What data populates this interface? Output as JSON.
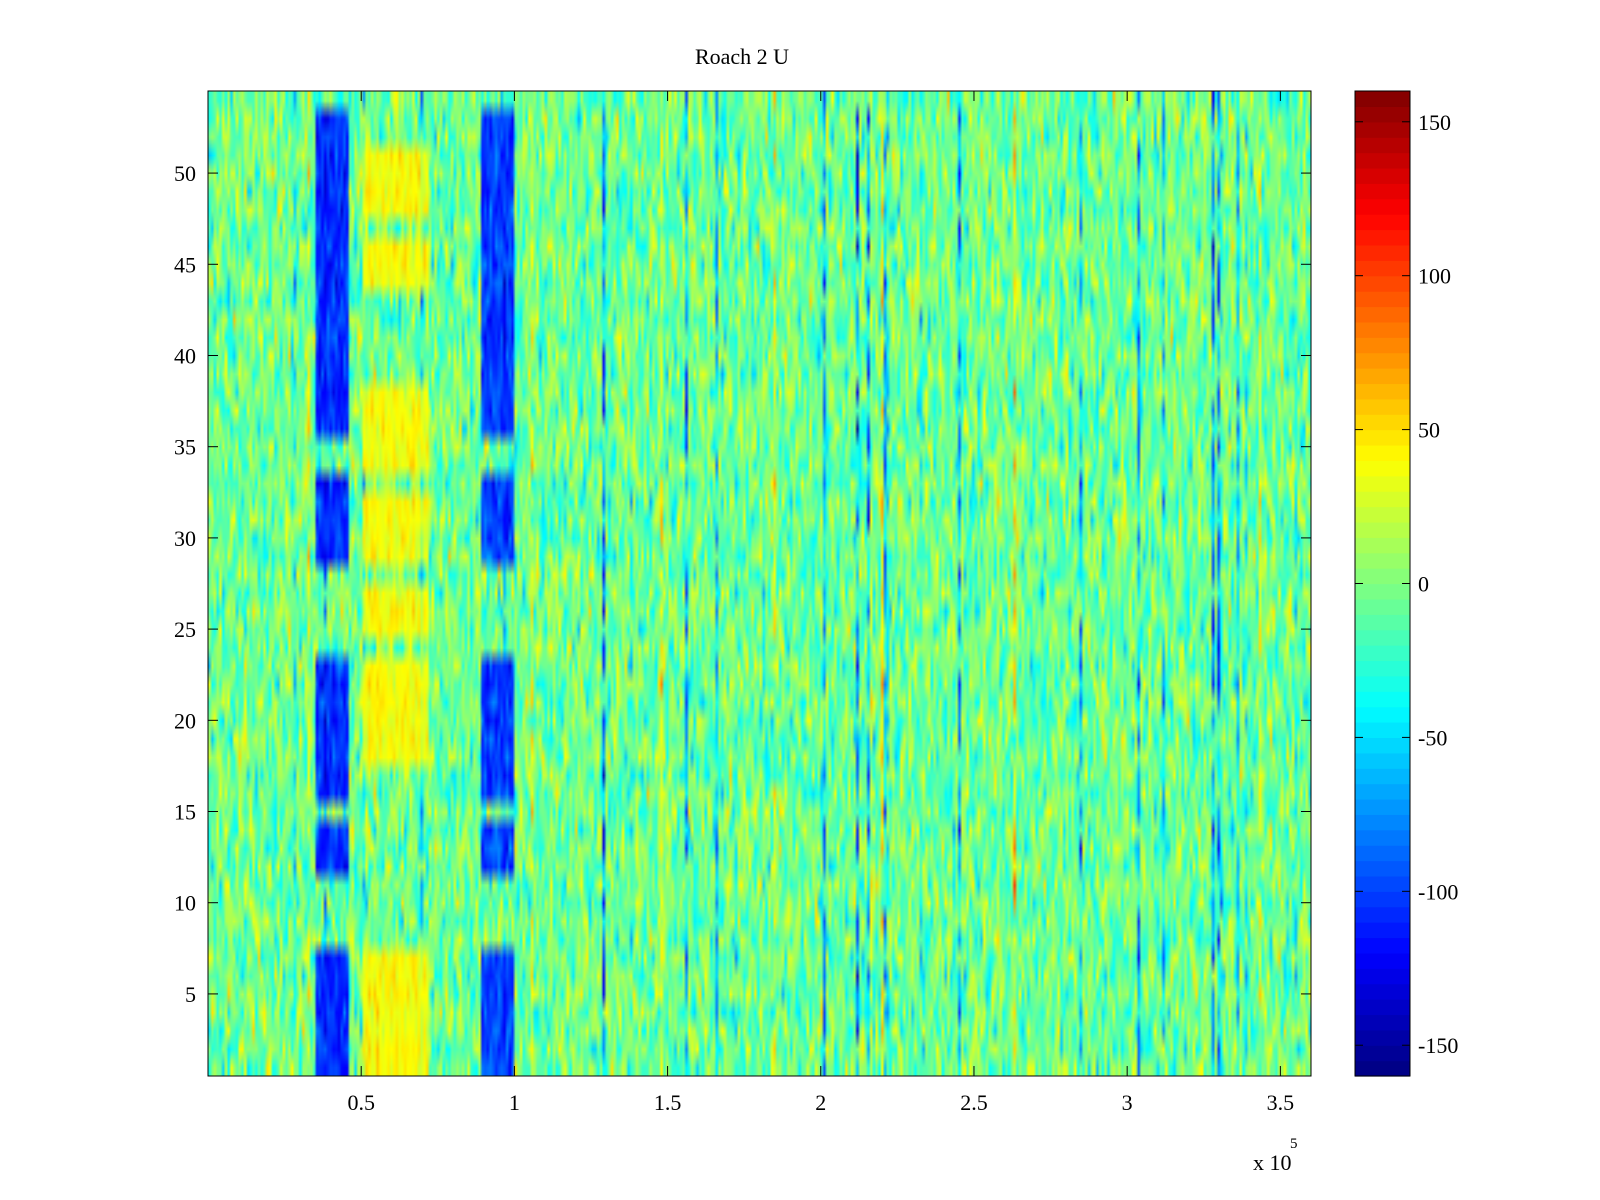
{
  "chart_data": {
    "type": "heatmap",
    "title": "Roach 2 U",
    "xlabel": "",
    "ylabel": "",
    "x_exponent_label": "x 10",
    "x_exponent_power": "5",
    "xlim": [
      0,
      360000
    ],
    "ylim": [
      0.5,
      54.5
    ],
    "x_ticks": [
      {
        "value": 50000,
        "label": "0.5"
      },
      {
        "value": 100000,
        "label": "1"
      },
      {
        "value": 150000,
        "label": "1.5"
      },
      {
        "value": 200000,
        "label": "2"
      },
      {
        "value": 250000,
        "label": "2.5"
      },
      {
        "value": 300000,
        "label": "3"
      },
      {
        "value": 350000,
        "label": "3.5"
      }
    ],
    "y_ticks": [
      {
        "value": 5,
        "label": "5"
      },
      {
        "value": 10,
        "label": "10"
      },
      {
        "value": 15,
        "label": "15"
      },
      {
        "value": 20,
        "label": "20"
      },
      {
        "value": 25,
        "label": "25"
      },
      {
        "value": 30,
        "label": "30"
      },
      {
        "value": 35,
        "label": "35"
      },
      {
        "value": 40,
        "label": "40"
      },
      {
        "value": 45,
        "label": "45"
      },
      {
        "value": 50,
        "label": "50"
      }
    ],
    "rows": 54,
    "colormap": "jet",
    "colorbar": {
      "range": [
        -160,
        160
      ],
      "ticks": [
        {
          "value": 150,
          "label": "150"
        },
        {
          "value": 100,
          "label": "100"
        },
        {
          "value": 50,
          "label": "50"
        },
        {
          "value": 0,
          "label": "0"
        },
        {
          "value": -50,
          "label": "-50"
        },
        {
          "value": -100,
          "label": "-100"
        },
        {
          "value": -150,
          "label": "-150"
        }
      ]
    },
    "noise": {
      "mean": -5,
      "spread": 22
    },
    "features": [
      {
        "x_range": [
          35000,
          46000
        ],
        "rows": [
          [
            1,
            3
          ],
          [
            4,
            7
          ],
          [
            12,
            14
          ],
          [
            16,
            19
          ],
          [
            20,
            23
          ],
          [
            29,
            31
          ],
          [
            32,
            33
          ],
          [
            36,
            38
          ],
          [
            39,
            46
          ],
          [
            47,
            53
          ]
        ],
        "value": -115,
        "kind": "negative-band"
      },
      {
        "x_range": [
          89000,
          100000
        ],
        "rows": [
          [
            1,
            3
          ],
          [
            4,
            7
          ],
          [
            12,
            14
          ],
          [
            16,
            19
          ],
          [
            20,
            23
          ],
          [
            29,
            31
          ],
          [
            32,
            33
          ],
          [
            36,
            38
          ],
          [
            39,
            46
          ],
          [
            47,
            53
          ]
        ],
        "value": -110,
        "kind": "negative-band"
      },
      {
        "x_range": [
          50000,
          72000
        ],
        "rows": [
          [
            1,
            7
          ],
          [
            18,
            23
          ],
          [
            25,
            27
          ],
          [
            29,
            32
          ],
          [
            34,
            38
          ],
          [
            44,
            46
          ],
          [
            48,
            51
          ]
        ],
        "value": 45,
        "kind": "positive-band"
      }
    ]
  },
  "colors": {
    "background": "#ffffff",
    "axes": "#000000"
  }
}
